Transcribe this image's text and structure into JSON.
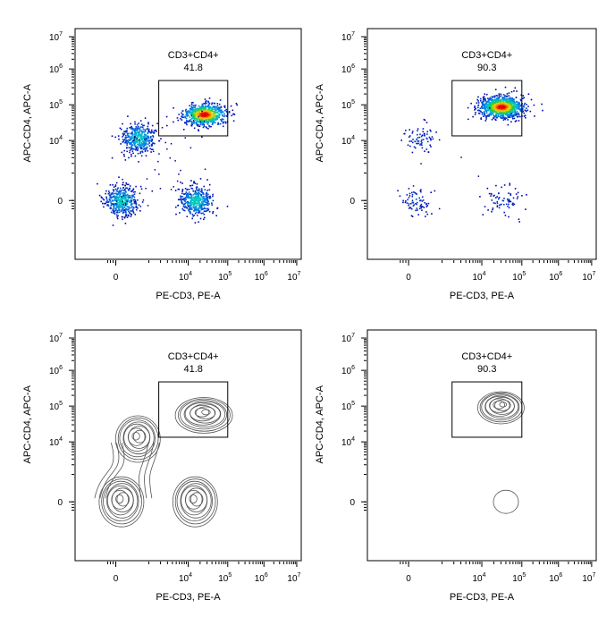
{
  "chart_data": [
    {
      "type": "scatter",
      "style": "pseudocolor-density",
      "xlabel": "PE-CD3, PE-A",
      "ylabel": "APC-CD4, APC-A",
      "x_scale": "biexponential",
      "y_scale": "biexponential",
      "x_tick_labels": [
        "0",
        "10^4",
        "10^5",
        "10^6",
        "10^7"
      ],
      "y_tick_labels": [
        "10^7",
        "10^6",
        "10^5",
        "10^4",
        "0"
      ],
      "gate": {
        "name": "CD3+CD4+",
        "value": "41.8",
        "x_range": [
          "~3000",
          "~2e5"
        ],
        "y_range": [
          "~1.5e4",
          "~2e5"
        ]
      },
      "populations": [
        {
          "name": "CD3+CD4+",
          "x_center": 25000,
          "y_center": 55000,
          "relative_density": "high"
        },
        {
          "name": "CD3-CD4+",
          "x_center": 500,
          "y_center": 12000,
          "relative_density": "medium"
        },
        {
          "name": "CD3-CD4-",
          "x_center": 100,
          "y_center": 0,
          "relative_density": "medium"
        },
        {
          "name": "CD3+CD4-",
          "x_center": 15000,
          "y_center": 0,
          "relative_density": "medium"
        }
      ]
    },
    {
      "type": "scatter",
      "style": "pseudocolor-density",
      "xlabel": "PE-CD3, PE-A",
      "ylabel": "APC-CD4, APC-A",
      "x_scale": "biexponential",
      "y_scale": "biexponential",
      "x_tick_labels": [
        "0",
        "10^4",
        "10^5",
        "10^6",
        "10^7"
      ],
      "y_tick_labels": [
        "10^7",
        "10^6",
        "10^5",
        "10^4",
        "0"
      ],
      "gate": {
        "name": "CD3+CD4+",
        "value": "90.3",
        "x_range": [
          "~3000",
          "~2e5"
        ],
        "y_range": [
          "~1.5e4",
          "~2e5"
        ]
      },
      "populations": [
        {
          "name": "CD3+CD4+",
          "x_center": 30000,
          "y_center": 90000,
          "relative_density": "high"
        },
        {
          "name": "CD3+CD4-",
          "x_center": 30000,
          "y_center": 0,
          "relative_density": "low"
        },
        {
          "name": "CD3-CD4+",
          "x_center": 200,
          "y_center": 12000,
          "relative_density": "low"
        },
        {
          "name": "CD3-CD4-",
          "x_center": 100,
          "y_center": 0,
          "relative_density": "low"
        }
      ]
    },
    {
      "type": "contour",
      "xlabel": "PE-CD3, PE-A",
      "ylabel": "APC-CD4, APC-A",
      "x_scale": "biexponential",
      "y_scale": "biexponential",
      "x_tick_labels": [
        "0",
        "10^4",
        "10^5",
        "10^6",
        "10^7"
      ],
      "y_tick_labels": [
        "10^7",
        "10^6",
        "10^5",
        "10^4",
        "0"
      ],
      "gate": {
        "name": "CD3+CD4+",
        "value": "41.8"
      },
      "populations": [
        {
          "name": "CD3+CD4+",
          "x_center": 25000,
          "y_center": 55000
        },
        {
          "name": "CD3-CD4+",
          "x_center": 500,
          "y_center": 12000
        },
        {
          "name": "CD3-CD4-",
          "x_center": 100,
          "y_center": 0
        },
        {
          "name": "CD3+CD4-",
          "x_center": 15000,
          "y_center": 0
        }
      ]
    },
    {
      "type": "contour",
      "xlabel": "PE-CD3, PE-A",
      "ylabel": "APC-CD4, APC-A",
      "x_scale": "biexponential",
      "y_scale": "biexponential",
      "x_tick_labels": [
        "0",
        "10^4",
        "10^5",
        "10^6",
        "10^7"
      ],
      "y_tick_labels": [
        "10^7",
        "10^6",
        "10^5",
        "10^4",
        "0"
      ],
      "gate": {
        "name": "CD3+CD4+",
        "value": "90.3"
      },
      "populations": [
        {
          "name": "CD3+CD4+",
          "x_center": 30000,
          "y_center": 90000
        },
        {
          "name": "CD3+CD4-",
          "x_center": 40000,
          "y_center": 0
        }
      ]
    }
  ]
}
